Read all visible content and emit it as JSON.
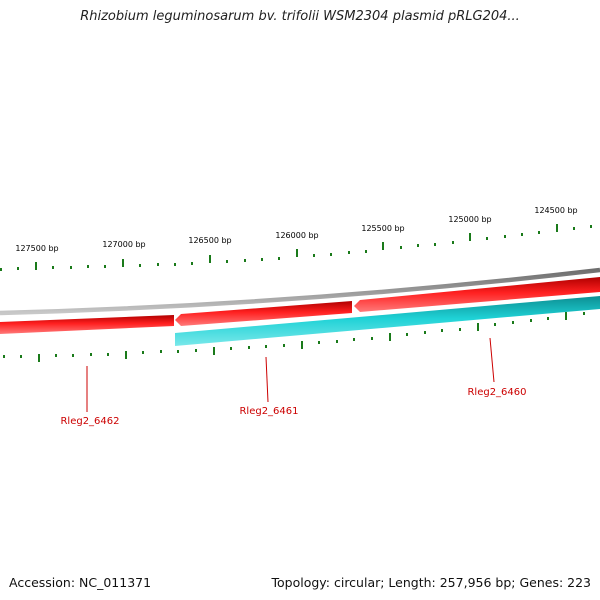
{
  "header": {
    "title": "Rhizobium leguminosarum bv. trifolii WSM2304 plasmid pRLG204..."
  },
  "footer": {
    "accession": "Accession: NC_011371",
    "stats": "Topology: circular; Length: 257,956 bp; Genes: 223"
  },
  "tick_labels": [
    "127500 bp",
    "127000 bp",
    "126500 bp",
    "126000 bp",
    "125500 bp",
    "125000 bp",
    "124500 bp"
  ],
  "genes": [
    {
      "name": "Rleg2_6462",
      "strand": "forward",
      "color": "#e60000"
    },
    {
      "name": "Rleg2_6461",
      "strand": "forward",
      "color": "#e60000"
    },
    {
      "name": "Rleg2_6460",
      "strand": "reverse",
      "color": "#19c3c8"
    }
  ],
  "colors": {
    "backbone": "#8c8c8c",
    "forward_gene": "#e60000",
    "reverse_gene": "#19c3c8",
    "tick": "#1a7a1a",
    "gene_label": "#cc0000"
  }
}
